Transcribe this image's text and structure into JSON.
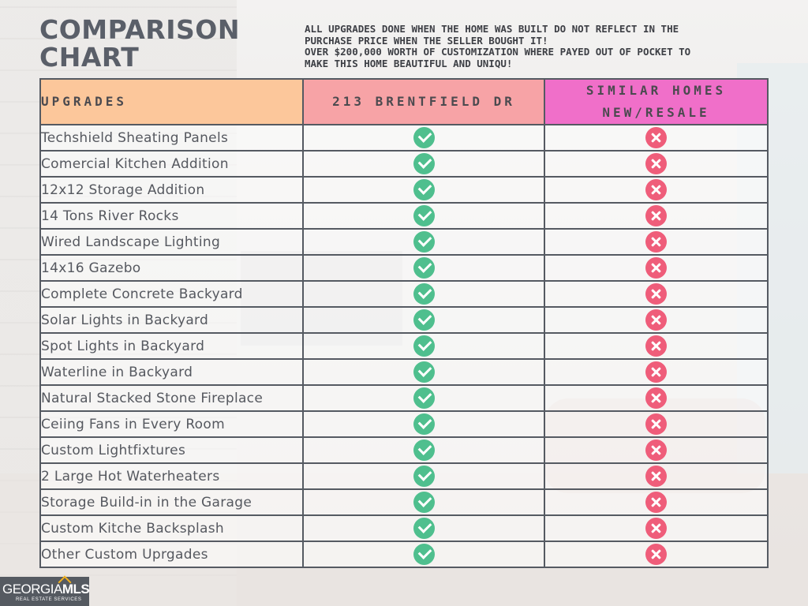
{
  "title_line1": "COMPARISON",
  "title_line2": "CHART",
  "note_lines": [
    "ALL UPGRADES DONE WHEN THE HOME WAS BUILT DO NOT REFLECT IN THE",
    "PURCHASE PRICE WHEN THE SELLER BOUGHT IT!",
    "OVER $200,000 WORTH OF CUSTOMIZATION WHERE PAYED OUT OF POCKET TO",
    "MAKE THIS HOME BEAUTIFUL AND UNIQU!"
  ],
  "table": {
    "headers": {
      "upgrades": "UPGRADES",
      "property": "213 BRENTFIELD DR",
      "similar_line1": "SIMILAR HOMES",
      "similar_line2": "NEW/RESALE"
    },
    "header_colors": {
      "upgrades": "#fcc79b",
      "property": "#f7a3a6",
      "similar": "#f06fc9"
    },
    "rows": [
      {
        "name": "Techshield Sheating Panels",
        "property": "check-icon",
        "similar": "cross-icon"
      },
      {
        "name": "Comercial Kitchen Addition",
        "property": "check-icon",
        "similar": "cross-icon"
      },
      {
        "name": "12x12 Storage Addition",
        "property": "check-icon",
        "similar": "cross-icon"
      },
      {
        "name": "14 Tons River Rocks",
        "property": "check-icon",
        "similar": "cross-icon"
      },
      {
        "name": "Wired Landscape Lighting",
        "property": "check-icon",
        "similar": "cross-icon"
      },
      {
        "name": "14x16 Gazebo",
        "property": "check-icon",
        "similar": "cross-icon"
      },
      {
        "name": "Complete Concrete Backyard",
        "property": "check-icon",
        "similar": "cross-icon"
      },
      {
        "name": "Solar Lights in Backyard",
        "property": "check-icon",
        "similar": "cross-icon"
      },
      {
        "name": "Spot Lights in Backyard",
        "property": "check-icon",
        "similar": "cross-icon"
      },
      {
        "name": "Waterline in Backyard",
        "property": "check-icon",
        "similar": "cross-icon"
      },
      {
        "name": "Natural Stacked Stone Fireplace",
        "property": "check-icon",
        "similar": "cross-icon"
      },
      {
        "name": "Ceiing Fans in Every Room",
        "property": "check-icon",
        "similar": "cross-icon"
      },
      {
        "name": "Custom Lightfixtures",
        "property": "check-icon",
        "similar": "cross-icon"
      },
      {
        "name": "2 Large Hot Waterheaters",
        "property": "check-icon",
        "similar": "cross-icon"
      },
      {
        "name": "Storage Build-in in the Garage",
        "property": "check-icon",
        "similar": "cross-icon"
      },
      {
        "name": "Custom Kitche Backsplash",
        "property": "check-icon",
        "similar": "cross-icon"
      },
      {
        "name": "Other Custom Uprgades",
        "property": "check-icon",
        "similar": "cross-icon"
      }
    ],
    "icon_colors": {
      "check": "#4fbf8e",
      "cross": "#ef5d7a"
    }
  },
  "logo": {
    "brand_main": "GEORGIA",
    "brand_mls": "MLS",
    "tagline": "REAL ESTATE SERVICES"
  }
}
